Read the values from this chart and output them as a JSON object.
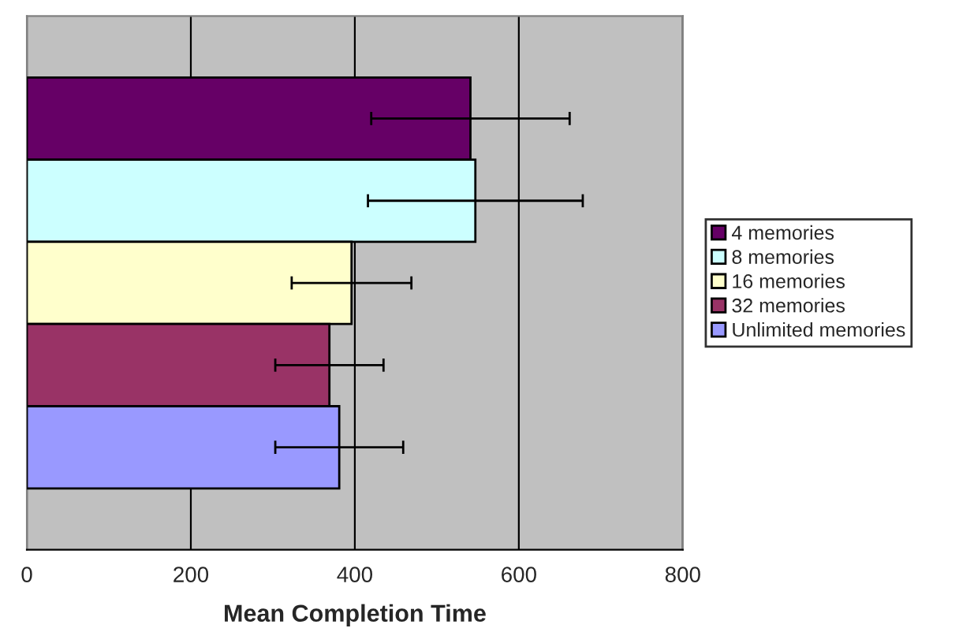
{
  "chart_data": {
    "type": "bar",
    "orientation": "horizontal",
    "xlabel": "Mean Completion Time",
    "categories": [
      null
    ],
    "series": [
      {
        "name": "4 memories",
        "color": "#660066",
        "values": [
          541
        ],
        "errors": [
          121
        ]
      },
      {
        "name": "8 memories",
        "color": "#ccffff",
        "values": [
          547
        ],
        "errors": [
          131
        ]
      },
      {
        "name": "16 memories",
        "color": "#ffffcc",
        "values": [
          396
        ],
        "errors": [
          73
        ]
      },
      {
        "name": "32 memories",
        "color": "#993366",
        "values": [
          369
        ],
        "errors": [
          66
        ]
      },
      {
        "name": "Unlimited memories",
        "color": "#9999ff",
        "values": [
          381
        ],
        "errors": [
          78
        ]
      }
    ],
    "xlim": [
      0,
      800
    ],
    "xticks": [
      0,
      200,
      400,
      600,
      800
    ],
    "grid": "x",
    "legend": "right"
  }
}
